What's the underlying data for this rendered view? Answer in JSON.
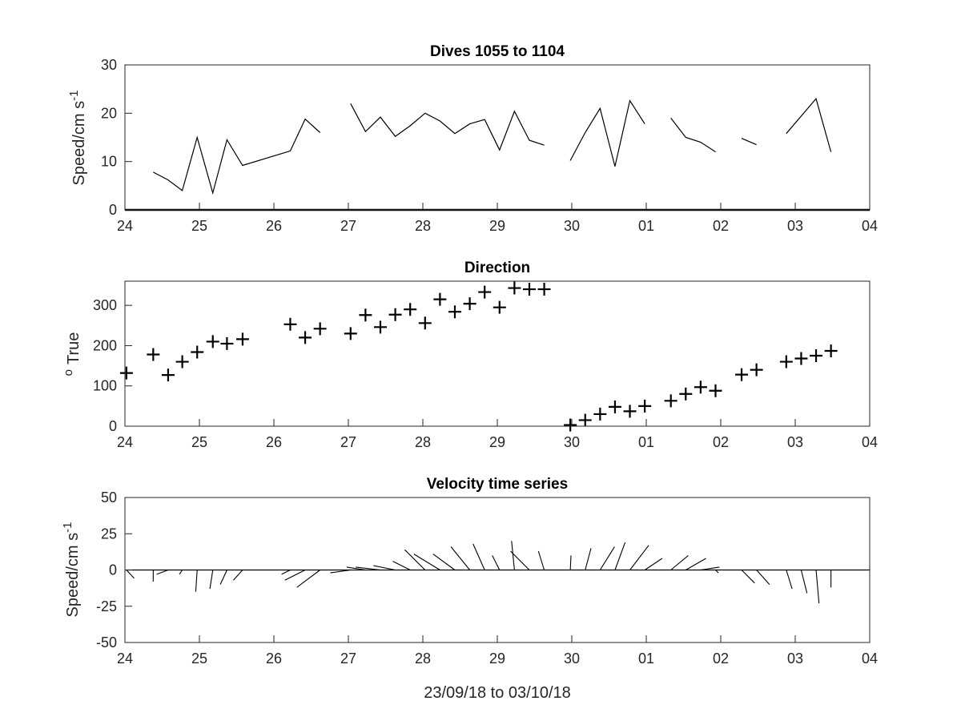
{
  "figure": {
    "xlabel": "23/09/18 to 03/10/18"
  },
  "chart_data": [
    {
      "type": "line",
      "title": "Dives 1055 to 1104",
      "ylabel": "Speed/cm s",
      "ylabel_superscript": "-1",
      "xlim": [
        0,
        10
      ],
      "ylim": [
        0,
        30
      ],
      "x_ticks": [
        "24",
        "25",
        "26",
        "27",
        "28",
        "29",
        "30",
        "01",
        "02",
        "03",
        "04"
      ],
      "y_ticks": [
        0,
        10,
        20,
        30
      ],
      "grid": false,
      "segments": [
        {
          "x": [
            0.38,
            0.58,
            0.77,
            0.97,
            1.18,
            1.37,
            1.58,
            2.22,
            2.42,
            2.62
          ],
          "y": [
            7.8,
            6.2,
            4.0,
            15.0,
            3.5,
            14.5,
            9.2,
            12.2,
            18.8,
            16.0
          ]
        },
        {
          "x": [
            3.03,
            3.23,
            3.43,
            3.63,
            3.83,
            4.03,
            4.23,
            4.43,
            4.63,
            4.83,
            5.03,
            5.23,
            5.43,
            5.63
          ],
          "y": [
            22.0,
            16.2,
            19.2,
            15.2,
            17.4,
            20.0,
            18.4,
            15.8,
            17.8,
            18.7,
            12.4,
            20.4,
            14.4,
            13.4
          ]
        },
        {
          "x": [
            5.98,
            6.18,
            6.38,
            6.58,
            6.78,
            6.98
          ],
          "y": [
            10.2,
            16.0,
            21.0,
            9.0,
            22.6,
            17.8
          ]
        },
        {
          "x": [
            7.33,
            7.53,
            7.73,
            7.93
          ],
          "y": [
            19.0,
            15.0,
            14.0,
            12.0
          ]
        },
        {
          "x": [
            8.28,
            8.48
          ],
          "y": [
            14.8,
            13.5
          ]
        },
        {
          "x": [
            8.88,
            9.28,
            9.48
          ],
          "y": [
            15.8,
            23.0,
            12.0
          ]
        }
      ]
    },
    {
      "type": "scatter",
      "title": "Direction",
      "ylabel": "True",
      "ylabel_prefix": "o",
      "xlim": [
        0,
        10
      ],
      "ylim": [
        0,
        360
      ],
      "x_ticks": [
        "24",
        "25",
        "26",
        "27",
        "28",
        "29",
        "30",
        "01",
        "02",
        "03",
        "04"
      ],
      "y_ticks": [
        0,
        100,
        200,
        300
      ],
      "grid": false,
      "marker": "+",
      "x": [
        0.02,
        0.38,
        0.58,
        0.77,
        0.97,
        1.18,
        1.37,
        1.58,
        2.22,
        2.42,
        2.62,
        3.03,
        3.23,
        3.43,
        3.63,
        3.83,
        4.03,
        4.23,
        4.43,
        4.63,
        4.83,
        5.03,
        5.23,
        5.43,
        5.63,
        5.98,
        6.18,
        6.38,
        6.58,
        6.78,
        6.98,
        7.33,
        7.53,
        7.73,
        7.93,
        8.28,
        8.48,
        8.88,
        9.08,
        9.28,
        9.48
      ],
      "y": [
        132,
        178,
        127,
        160,
        184,
        210,
        205,
        216,
        253,
        220,
        242,
        230,
        276,
        246,
        277,
        290,
        256,
        315,
        284,
        304,
        333,
        295,
        343,
        340,
        340,
        3,
        15,
        30,
        48,
        37,
        50,
        63,
        80,
        97,
        88,
        128,
        140,
        160,
        168,
        175,
        187
      ]
    },
    {
      "type": "line",
      "title": "Velocity time series",
      "subtype": "stick",
      "ylabel": "Speed/cm s",
      "ylabel_superscript": "-1",
      "xlim": [
        0,
        10
      ],
      "ylim": [
        -50,
        50
      ],
      "x_ticks": [
        "24",
        "25",
        "26",
        "27",
        "28",
        "29",
        "30",
        "01",
        "02",
        "03",
        "04"
      ],
      "y_ticks": [
        "50",
        "25",
        "0",
        "-25",
        "-50"
      ],
      "grid": false,
      "baseline": 0,
      "sticks": {
        "x": [
          0.02,
          0.38,
          0.58,
          0.77,
          0.97,
          1.18,
          1.37,
          1.58,
          2.22,
          2.42,
          2.62,
          3.03,
          3.23,
          3.43,
          3.63,
          3.83,
          4.03,
          4.23,
          4.43,
          4.63,
          4.83,
          5.03,
          5.23,
          5.43,
          5.63,
          5.98,
          6.18,
          6.38,
          6.58,
          6.78,
          6.98,
          7.33,
          7.53,
          7.73,
          7.93,
          8.28,
          8.48,
          8.88,
          9.08,
          9.28,
          9.48
        ],
        "u": [
          5.3,
          0.0,
          -7.9,
          -2.0,
          -1.0,
          -2.0,
          -4.6,
          -6.4,
          -6.0,
          -14.0,
          -16.0,
          -14.0,
          -13.0,
          -17.0,
          -15.0,
          -12.0,
          -14.0,
          -18.0,
          -15.0,
          -13.0,
          -8.0,
          -5.0,
          -2.0,
          -13.0,
          -4.0,
          0.5,
          4.0,
          10.0,
          7.0,
          13.0,
          12.0,
          12.0,
          14.0,
          13.0,
          2.0,
          9.0,
          9.0,
          4.0,
          4.0,
          2.0,
          0.0
        ],
        "v": [
          -5.7,
          -8.0,
          -3.0,
          -3.0,
          -15.0,
          -13.0,
          -10.0,
          -7.0,
          -3.0,
          -7.0,
          -12.0,
          -2.0,
          2.0,
          2.0,
          3.0,
          6.0,
          14.0,
          11.0,
          11.0,
          16.0,
          18.0,
          10.0,
          20.0,
          13.0,
          13.0,
          10.0,
          15.0,
          16.0,
          19.0,
          17.0,
          8.0,
          10.0,
          8.0,
          2.0,
          -2.0,
          -9.0,
          -10.0,
          -13.0,
          -16.0,
          -23.0,
          -12.0
        ]
      }
    }
  ]
}
